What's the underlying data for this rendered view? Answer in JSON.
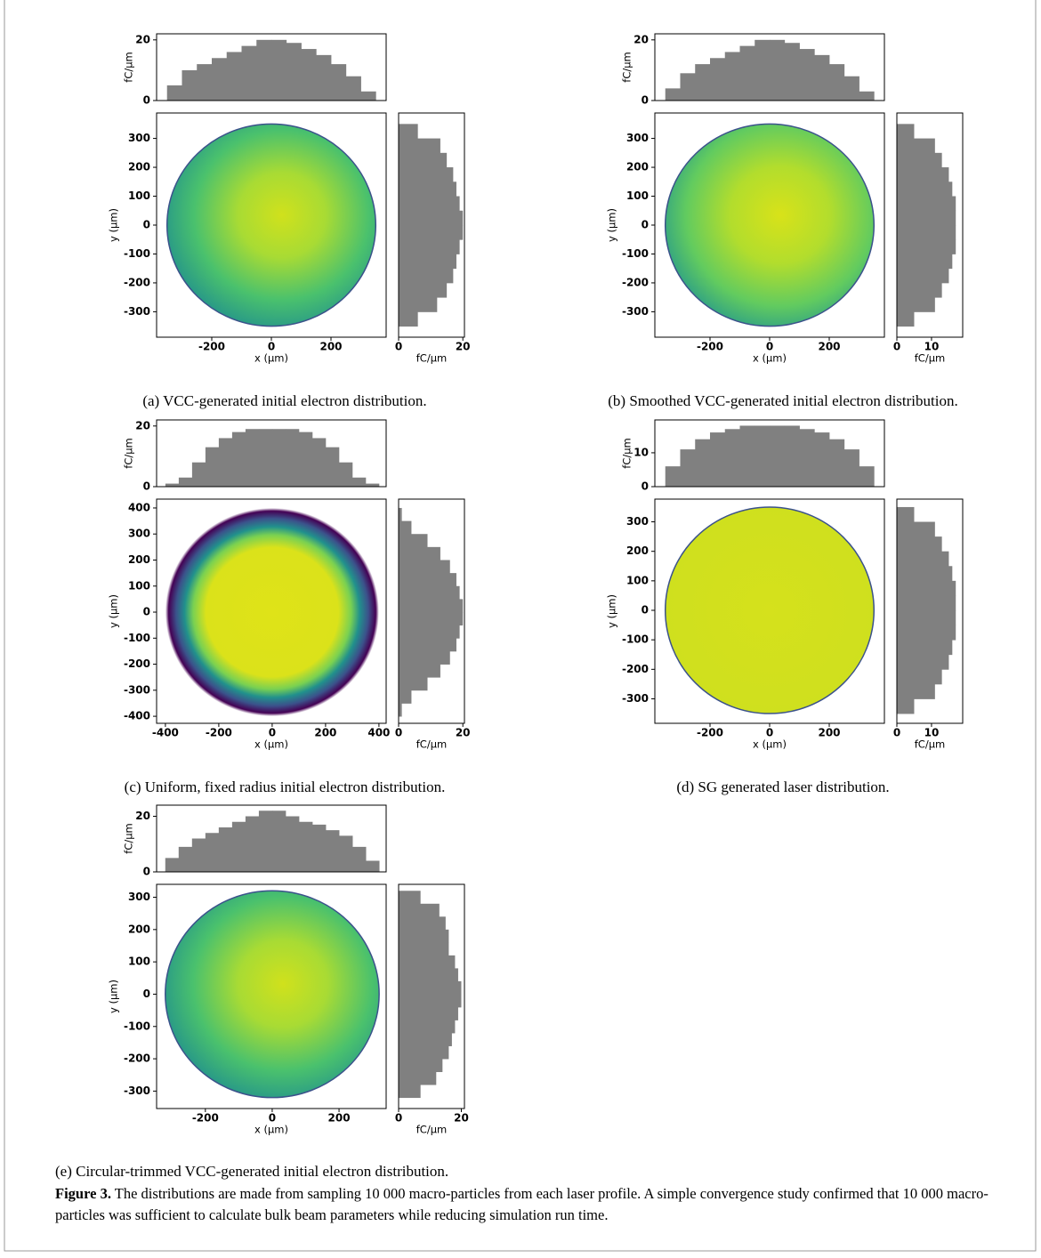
{
  "chart_data": [
    {
      "type": "joint-histogram",
      "caption": "(a) VCC-generated initial electron distribution.",
      "xlabel": "x (µm)",
      "ylabel": "y (µm)",
      "xlim": [
        -385,
        385
      ],
      "ylim": [
        -388,
        388
      ],
      "xticks": [
        -200,
        0,
        200
      ],
      "yticks": [
        -300,
        -200,
        -100,
        0,
        100,
        200,
        300
      ],
      "top": {
        "ylabel": "fC/µm",
        "ylim": [
          0,
          22
        ],
        "yticks": [
          0,
          20
        ],
        "color": "#808080",
        "bins": [
          -350,
          -300,
          -250,
          -200,
          -150,
          -100,
          -50,
          0,
          50,
          100,
          150,
          200,
          250,
          300,
          350
        ],
        "values": [
          5,
          10,
          12,
          14,
          16,
          18,
          20,
          20,
          19,
          17,
          15,
          12,
          8,
          3
        ]
      },
      "right": {
        "xlabel": "fC/µm",
        "xlim": [
          0,
          20.5
        ],
        "xticks": [
          0,
          20
        ],
        "color": "#808080",
        "bins": [
          -350,
          -300,
          -250,
          -200,
          -150,
          -100,
          -50,
          0,
          50,
          100,
          150,
          200,
          250,
          300,
          350
        ],
        "values": [
          6,
          12,
          15,
          17,
          18,
          19,
          20,
          20,
          19,
          18,
          17,
          15,
          13,
          6
        ]
      }
    },
    {
      "type": "joint-histogram",
      "caption": "(b) Smoothed VCC-generated initial electron distribution.",
      "xlabel": "x (µm)",
      "ylabel": "y (µm)",
      "xlim": [
        -385,
        385
      ],
      "ylim": [
        -388,
        388
      ],
      "xticks": [
        -200,
        0,
        200
      ],
      "yticks": [
        -300,
        -200,
        -100,
        0,
        100,
        200,
        300
      ],
      "top": {
        "ylabel": "fC/µm",
        "ylim": [
          0,
          22
        ],
        "yticks": [
          0,
          20
        ],
        "color": "#808080",
        "bins": [
          -350,
          -300,
          -250,
          -200,
          -150,
          -100,
          -50,
          0,
          50,
          100,
          150,
          200,
          250,
          300,
          350
        ],
        "values": [
          4,
          9,
          12,
          14,
          16,
          18,
          20,
          20,
          19,
          17,
          15,
          12,
          8,
          3
        ]
      },
      "right": {
        "xlabel": "fC/µm",
        "xlim": [
          0,
          19
        ],
        "xticks": [
          0,
          10
        ],
        "color": "#808080",
        "bins": [
          -350,
          -300,
          -250,
          -200,
          -150,
          -100,
          -50,
          0,
          50,
          100,
          150,
          200,
          250,
          300,
          350
        ],
        "values": [
          5,
          11,
          13,
          15,
          16,
          17,
          17,
          17,
          17,
          16,
          15,
          13,
          11,
          5
        ]
      }
    },
    {
      "type": "joint-histogram",
      "caption": "(c) Uniform, fixed radius initial electron distribution.",
      "xlabel": "x (µm)",
      "ylabel": "y (µm)",
      "xlim": [
        -433,
        427
      ],
      "ylim": [
        -427,
        434
      ],
      "xticks": [
        -400,
        -200,
        0,
        200,
        400
      ],
      "yticks": [
        -400,
        -300,
        -200,
        -100,
        0,
        100,
        200,
        300,
        400
      ],
      "top": {
        "ylabel": "fC/µm",
        "ylim": [
          0,
          22
        ],
        "yticks": [
          0,
          20
        ],
        "color": "#808080",
        "bins": [
          -400,
          -350,
          -300,
          -250,
          -200,
          -150,
          -100,
          -50,
          0,
          50,
          100,
          150,
          200,
          250,
          300,
          350,
          400
        ],
        "values": [
          1,
          3,
          8,
          13,
          16,
          18,
          19,
          19,
          19,
          19,
          18,
          16,
          13,
          8,
          3,
          1
        ]
      },
      "right": {
        "xlabel": "fC/µm",
        "xlim": [
          0,
          20.5
        ],
        "xticks": [
          0,
          20
        ],
        "color": "#808080",
        "bins": [
          -400,
          -350,
          -300,
          -250,
          -200,
          -150,
          -100,
          -50,
          0,
          50,
          100,
          150,
          200,
          250,
          300,
          350,
          400
        ],
        "values": [
          1,
          4,
          9,
          13,
          16,
          18,
          19,
          20,
          20,
          19,
          18,
          16,
          13,
          9,
          4,
          1
        ]
      }
    },
    {
      "type": "joint-histogram",
      "caption": "(d) SG generated laser distribution.",
      "xlabel": "x (µm)",
      "ylabel": "y (µm)",
      "xlim": [
        -385,
        385
      ],
      "ylim": [
        -383,
        377
      ],
      "xticks": [
        -200,
        0,
        200
      ],
      "yticks": [
        -300,
        -200,
        -100,
        0,
        100,
        200,
        300
      ],
      "top": {
        "ylabel": "fC/µm",
        "ylim": [
          0,
          19.7
        ],
        "yticks": [
          0,
          10
        ],
        "color": "#808080",
        "bins": [
          -350,
          -300,
          -250,
          -200,
          -150,
          -100,
          -50,
          0,
          50,
          100,
          150,
          200,
          250,
          300,
          350
        ],
        "values": [
          6,
          11,
          14,
          16,
          17,
          18,
          18,
          18,
          18,
          17,
          16,
          14,
          11,
          6
        ]
      },
      "right": {
        "xlabel": "fC/µm",
        "xlim": [
          0,
          19
        ],
        "xticks": [
          0,
          10
        ],
        "color": "#808080",
        "bins": [
          -350,
          -300,
          -250,
          -200,
          -150,
          -100,
          -50,
          0,
          50,
          100,
          150,
          200,
          250,
          300,
          350
        ],
        "values": [
          5,
          11,
          13,
          15,
          16,
          17,
          17,
          17,
          17,
          16,
          15,
          13,
          11,
          5
        ]
      }
    },
    {
      "type": "joint-histogram",
      "caption": "(e) Circular-trimmed VCC-generated initial electron distribution.",
      "xlabel": "x (µm)",
      "ylabel": "y (µm)",
      "xlim": [
        -346,
        341
      ],
      "ylim": [
        -354,
        340
      ],
      "xticks": [
        -200,
        0,
        200
      ],
      "yticks": [
        -300,
        -200,
        -100,
        0,
        100,
        200,
        300
      ],
      "top": {
        "ylabel": "fC/µm",
        "ylim": [
          0,
          24
        ],
        "yticks": [
          0,
          20
        ],
        "color": "#808080",
        "bins": [
          -320,
          -280,
          -240,
          -200,
          -160,
          -120,
          -80,
          -40,
          0,
          40,
          80,
          120,
          160,
          200,
          240,
          280,
          320
        ],
        "values": [
          5,
          9,
          12,
          14,
          16,
          18,
          20,
          22,
          22,
          20,
          18,
          17,
          15,
          13,
          9,
          4
        ]
      },
      "right": {
        "xlabel": "fC/µm",
        "xlim": [
          0,
          21
        ],
        "xticks": [
          0,
          20
        ],
        "color": "#808080",
        "bins": [
          -320,
          -280,
          -240,
          -200,
          -160,
          -120,
          -80,
          -40,
          0,
          40,
          80,
          120,
          160,
          200,
          240,
          280,
          320
        ],
        "values": [
          7,
          12,
          14,
          16,
          17,
          18,
          19,
          20,
          20,
          19,
          18,
          16,
          16,
          15,
          13,
          7
        ]
      }
    }
  ],
  "figure_caption": {
    "label": "Figure 3.",
    "text": "The distributions are made from sampling 10 000 macro-particles from each laser profile. A simple convergence study confirmed that 10 000 macro-particles was sufficient to calculate bulk beam parameters while reducing simulation run time."
  }
}
